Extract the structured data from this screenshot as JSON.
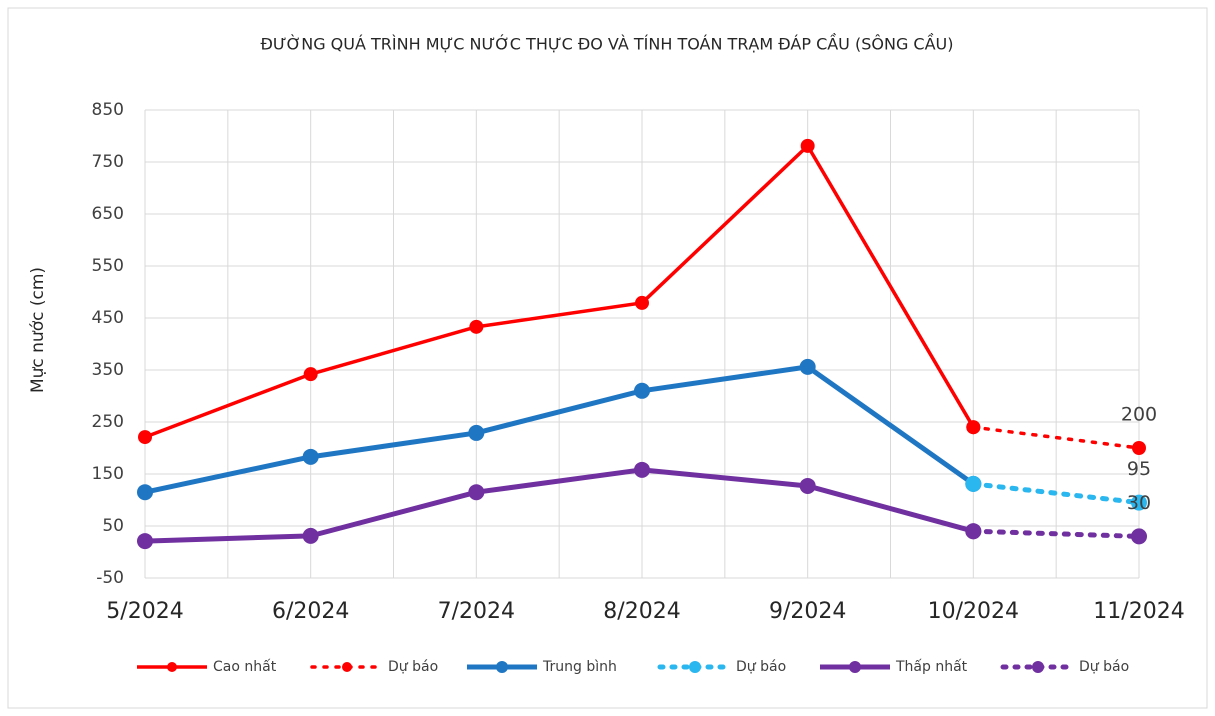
{
  "chart_data": {
    "type": "line",
    "title": "ĐƯỜNG QUÁ TRÌNH MỰC NƯỚC THỰC ĐO VÀ TÍNH TOÁN TRẠM ĐÁP CẦU (SÔNG CẦU)",
    "y_label": "Mực nước (cm)",
    "categories": [
      "5/2024",
      "6/2024",
      "7/2024",
      "8/2024",
      "9/2024",
      "10/2024",
      "11/2024"
    ],
    "ylim": [
      -50,
      850
    ],
    "yticks": [
      -50,
      50,
      150,
      250,
      350,
      450,
      550,
      650,
      750,
      850
    ],
    "grid": true,
    "legend": "bottom",
    "series": [
      {
        "name": "Cao nhất",
        "color": "#ff0000",
        "style": "solid",
        "values": [
          221,
          342,
          433,
          479,
          781,
          240,
          null
        ]
      },
      {
        "name": "Dự báo",
        "color": "#ff0000",
        "style": "dotted",
        "show_last_label": true,
        "values": [
          null,
          null,
          null,
          null,
          null,
          240,
          200
        ]
      },
      {
        "name": "Trung bình",
        "color": "#1f77c4",
        "style": "solid",
        "values": [
          115,
          183,
          229,
          310,
          356,
          131,
          null
        ]
      },
      {
        "name": "Dự báo",
        "color": "#2ab7f0",
        "style": "dotted",
        "show_last_label": true,
        "values": [
          null,
          null,
          null,
          null,
          null,
          131,
          95
        ]
      },
      {
        "name": "Thấp nhất",
        "color": "#7030a0",
        "style": "solid",
        "values": [
          21,
          31,
          115,
          158,
          127,
          40,
          null
        ]
      },
      {
        "name": "Dự báo",
        "color": "#7030a0",
        "style": "dotted",
        "show_last_label": true,
        "values": [
          null,
          null,
          null,
          null,
          null,
          40,
          30
        ]
      }
    ]
  }
}
